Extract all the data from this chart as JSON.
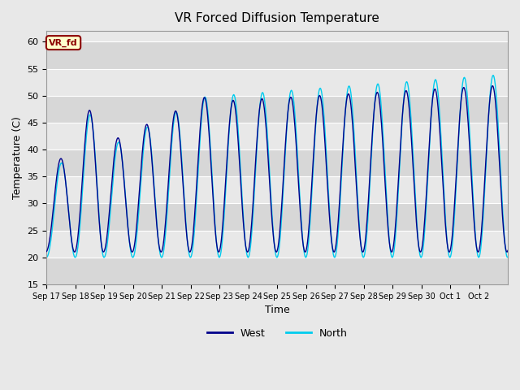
{
  "title": "VR Forced Diffusion Temperature",
  "xlabel": "Time",
  "ylabel": "Temperature (C)",
  "ylim": [
    15,
    62
  ],
  "yticks": [
    15,
    20,
    25,
    30,
    35,
    40,
    45,
    50,
    55,
    60
  ],
  "west_color": "#00008B",
  "north_color": "#00CCEE",
  "background_color": "#E8E8E8",
  "label_box_text": "VR_fd",
  "label_box_bg": "#FFFFCC",
  "label_box_border": "#8B0000",
  "label_text_color": "#8B0000",
  "n_days": 16,
  "xtick_labels": [
    "Sep 17",
    "Sep 18",
    "Sep 19",
    "Sep 20",
    "Sep 21",
    "Sep 22",
    "Sep 23",
    "Sep 24",
    "Sep 25",
    "Sep 26",
    "Sep 27",
    "Sep 28",
    "Sep 29",
    "Sep 30",
    "Oct 1",
    "Oct 2"
  ]
}
